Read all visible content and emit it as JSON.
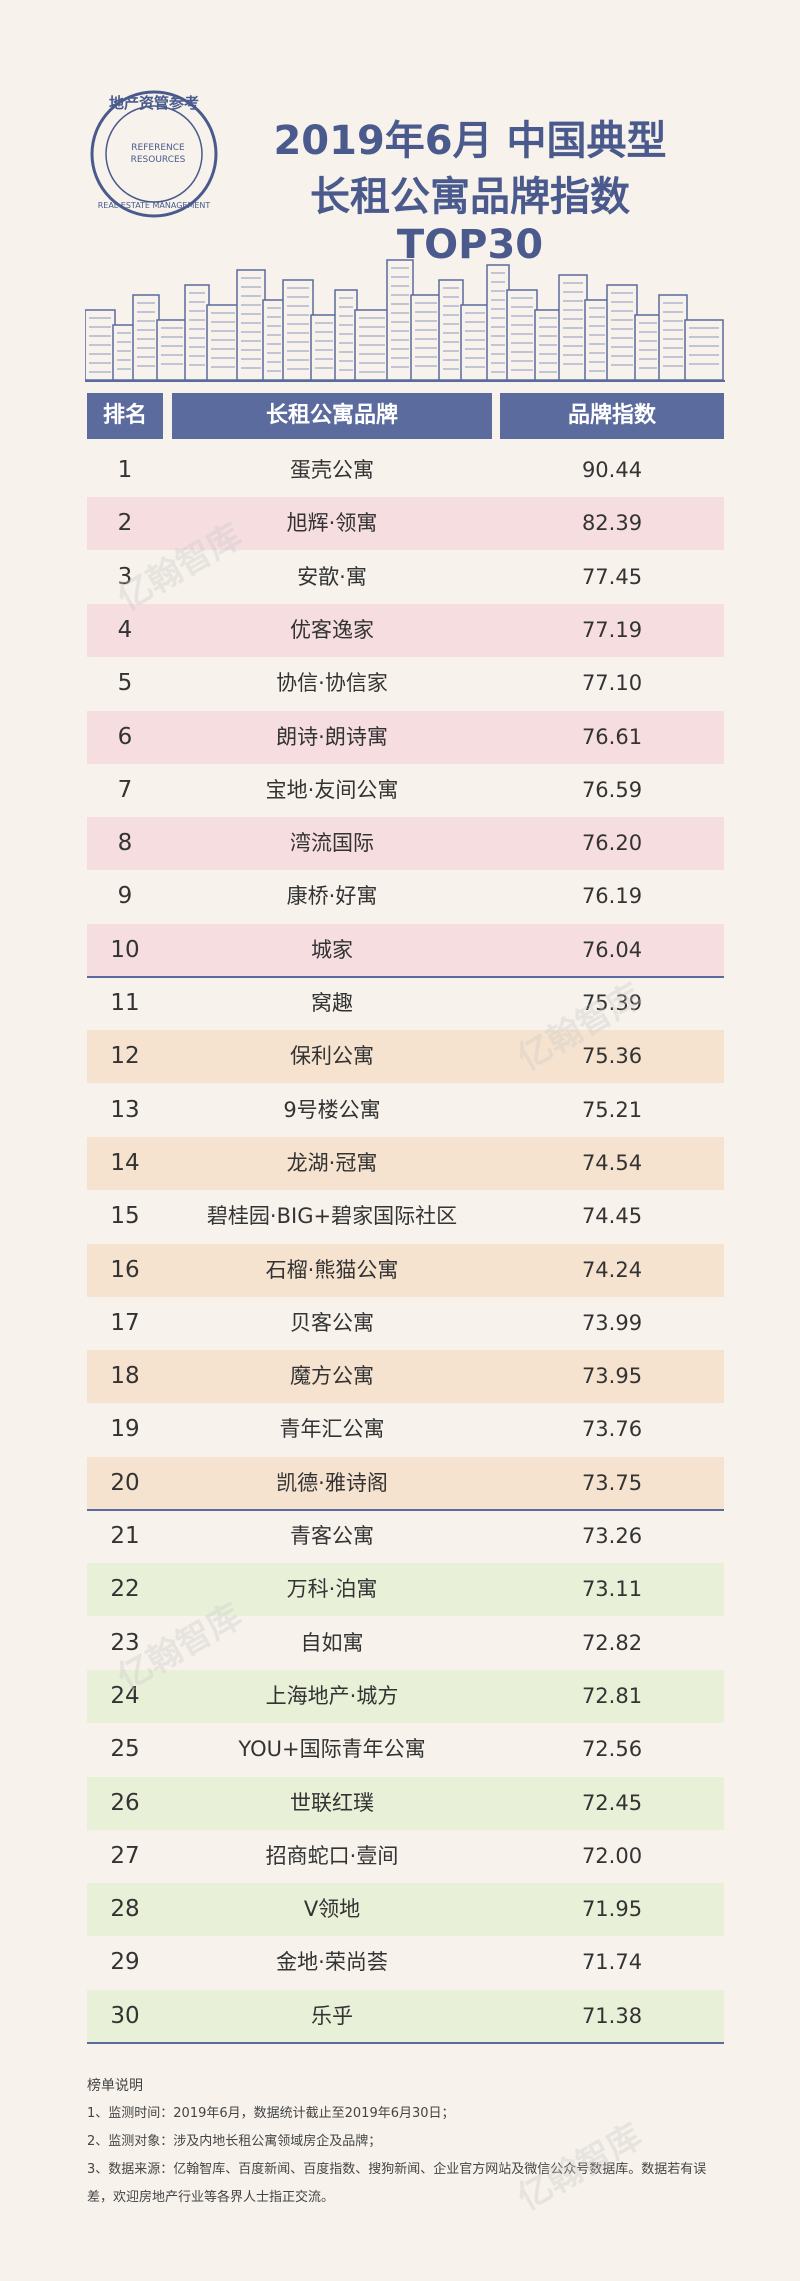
{
  "header": {
    "title_line1": "2019年6月 中国典型",
    "title_line2": "长租公寓品牌指数 TOP30",
    "logo_cn": "地产资管参考",
    "logo_en1": "REFERENCE",
    "logo_en2": "RESOURCES",
    "logo_en3": "REAL ESTATE MANAGEMENT"
  },
  "table": {
    "columns": [
      "排名",
      "长租公寓品牌",
      "品牌指数"
    ],
    "rows": [
      [
        "1",
        "蛋壳公寓",
        "90.44"
      ],
      [
        "2",
        "旭辉·领寓",
        "82.39"
      ],
      [
        "3",
        "安歆·寓",
        "77.45"
      ],
      [
        "4",
        "优客逸家",
        "77.19"
      ],
      [
        "5",
        "协信·协信家",
        "77.10"
      ],
      [
        "6",
        "朗诗·朗诗寓",
        "76.61"
      ],
      [
        "7",
        "宝地·友间公寓",
        "76.59"
      ],
      [
        "8",
        "湾流国际",
        "76.20"
      ],
      [
        "9",
        "康桥·好寓",
        "76.19"
      ],
      [
        "10",
        "城家",
        "76.04"
      ],
      [
        "11",
        "窝趣",
        "75.39"
      ],
      [
        "12",
        "保利公寓",
        "75.36"
      ],
      [
        "13",
        "9号楼公寓",
        "75.21"
      ],
      [
        "14",
        "龙湖·冠寓",
        "74.54"
      ],
      [
        "15",
        "碧桂园·BIG+碧家国际社区",
        "74.45"
      ],
      [
        "16",
        "石榴·熊猫公寓",
        "74.24"
      ],
      [
        "17",
        "贝客公寓",
        "73.99"
      ],
      [
        "18",
        "魔方公寓",
        "73.95"
      ],
      [
        "19",
        "青年汇公寓",
        "73.76"
      ],
      [
        "20",
        "凯德·雅诗阁",
        "73.75"
      ],
      [
        "21",
        "青客公寓",
        "73.26"
      ],
      [
        "22",
        "万科·泊寓",
        "73.11"
      ],
      [
        "23",
        "自如寓",
        "72.82"
      ],
      [
        "24",
        "上海地产·城方",
        "72.81"
      ],
      [
        "25",
        "YOU+国际青年公寓",
        "72.56"
      ],
      [
        "26",
        "世联红璞",
        "72.45"
      ],
      [
        "27",
        "招商蛇口·壹间",
        "72.00"
      ],
      [
        "28",
        "V领地",
        "71.95"
      ],
      [
        "29",
        "金地·荣尚荟",
        "71.74"
      ],
      [
        "30",
        "乐乎",
        "71.38"
      ]
    ]
  },
  "watermark": "亿翰智库",
  "notes": {
    "title": "榜单说明",
    "lines": [
      "1、监测时间：2019年6月，数据统计截止至2019年6月30日；",
      "2、监测对象：涉及内地长租公寓领域房企及品牌；",
      "3、数据来源：亿翰智库、百度新闻、百度指数、搜狗新闻、企业官方网站及微信公众号数据库。数据若有误差，欢迎房地产行业等各界人士指正交流。"
    ]
  }
}
